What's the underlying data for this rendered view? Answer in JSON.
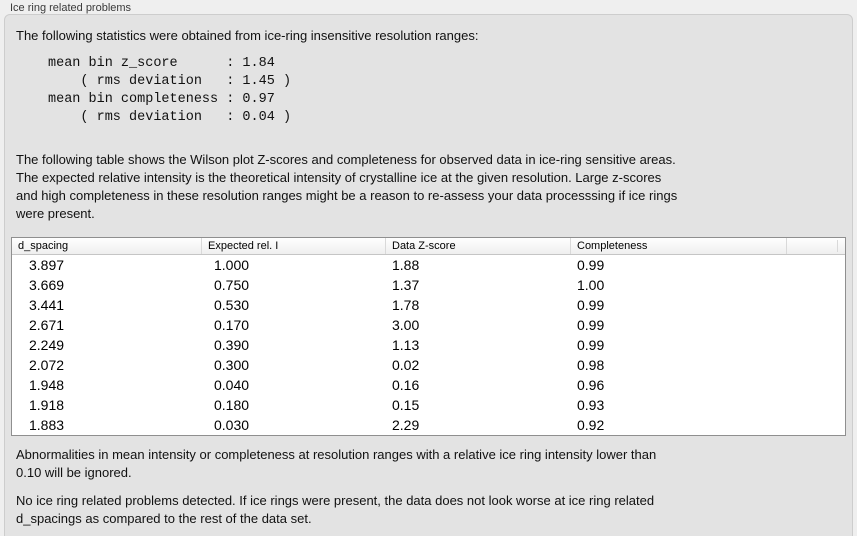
{
  "group": {
    "title": "Ice ring related problems"
  },
  "panel": {
    "intro": "The following statistics were obtained from ice-ring insensitive resolution ranges:",
    "stats_block": "mean bin z_score      : 1.84\n    ( rms deviation   : 1.45 )\nmean bin completeness : 0.97\n    ( rms deviation   : 0.04 )",
    "stats": {
      "mean_bin_z_score": "1.84",
      "z_score_rms_deviation": "1.45",
      "mean_bin_completeness": "0.97",
      "completeness_rms_deviation": "0.04"
    },
    "description": "The following table shows the Wilson plot Z-scores and completeness for observed data in ice-ring sensitive areas.\nThe expected relative intensity is the theoretical intensity of crystalline ice at the given resolution. Large z-scores\nand high completeness in these resolution ranges might be a reason to re-assess your data processsing if ice rings\nwere present.",
    "ignore_note": "Abnormalities in mean intensity or completeness at resolution ranges with a relative ice ring intensity lower than\n0.10 will be ignored.",
    "conclusion": "No ice ring related problems detected. If ice rings were present, the data does not look worse at ice ring related\nd_spacings as compared to the rest of the data set."
  },
  "table": {
    "columns": [
      "d_spacing",
      "Expected rel. I",
      "Data Z-score",
      "Completeness",
      ""
    ],
    "rows": [
      [
        "3.897",
        "1.000",
        "1.88",
        "0.99"
      ],
      [
        "3.669",
        "0.750",
        "1.37",
        "1.00"
      ],
      [
        "3.441",
        "0.530",
        "1.78",
        "0.99"
      ],
      [
        "2.671",
        "0.170",
        "3.00",
        "0.99"
      ],
      [
        "2.249",
        "0.390",
        "1.13",
        "0.99"
      ],
      [
        "2.072",
        "0.300",
        "0.02",
        "0.98"
      ],
      [
        "1.948",
        "0.040",
        "0.16",
        "0.96"
      ],
      [
        "1.918",
        "0.180",
        "0.15",
        "0.93"
      ],
      [
        "1.883",
        "0.030",
        "2.29",
        "0.92"
      ]
    ]
  },
  "colors": {
    "page_background": "#efefef",
    "panel_background": "#e3e3e3",
    "panel_border": "#cdcdcd",
    "table_border": "#8f8f8f",
    "table_body_background": "#ffffff",
    "text": "#111111"
  }
}
